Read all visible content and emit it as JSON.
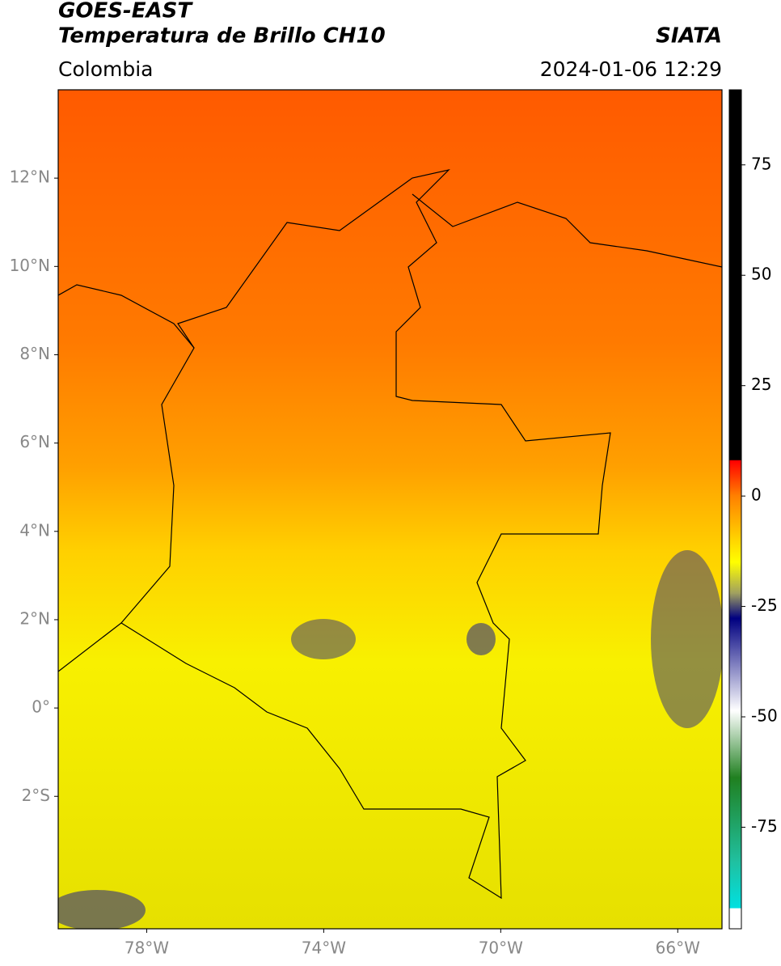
{
  "header": {
    "title": "GOES-EAST",
    "subtitle": "Temperatura de Brillo CH10",
    "source": "SIATA",
    "region": "Colombia",
    "datetime": "2024-01-06 12:29"
  },
  "map": {
    "xlim": [
      -80,
      -65
    ],
    "ylim": [
      -5,
      14
    ],
    "xticks": [
      {
        "value": -78,
        "label": "78°W"
      },
      {
        "value": -74,
        "label": "74°W"
      },
      {
        "value": -70,
        "label": "70°W"
      },
      {
        "value": -66,
        "label": "66°W"
      }
    ],
    "yticks": [
      {
        "value": 12,
        "label": "12°N"
      },
      {
        "value": 10,
        "label": "10°N"
      },
      {
        "value": 8,
        "label": "8°N"
      },
      {
        "value": 6,
        "label": "6°N"
      },
      {
        "value": 4,
        "label": "4°N"
      },
      {
        "value": 2,
        "label": "2°N"
      },
      {
        "value": 0,
        "label": "0°"
      },
      {
        "value": -2,
        "label": "2°S"
      }
    ],
    "grid": true
  },
  "colorbar": {
    "lim": [
      -98,
      92
    ],
    "ticks": [
      75,
      50,
      25,
      0,
      -25,
      -50,
      -75
    ]
  }
}
